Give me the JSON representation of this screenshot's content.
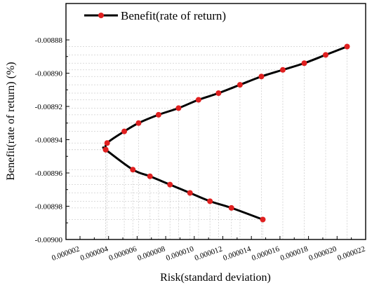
{
  "chart_data": {
    "type": "line",
    "xlabel": "Risk(standard deviation)",
    "ylabel": "Benefit(rate of return) (%)",
    "xlim": [
      2e-06,
      2.2e-05
    ],
    "ylim": [
      -0.009,
      -0.00887
    ],
    "x_ticks": [
      "0.000002",
      "0.000004",
      "0.000006",
      "0.000008",
      "0.000010",
      "0.000012",
      "0.000014",
      "0.000016",
      "0.000018",
      "0.000020",
      "0.000022"
    ],
    "y_ticks": [
      "-0.00888",
      "-0.00890",
      "-0.00892",
      "-0.00894",
      "-0.00896",
      "-0.00898",
      "-0.00900"
    ],
    "legend_position": "top-left",
    "grid": "dashed guide lines from each point to the axes",
    "line_color": "#000000",
    "marker_color": "#e02020",
    "series": [
      {
        "name": "Benefit(rate of return)",
        "x": [
          3.8e-06,
          3.9e-06,
          5.1e-06,
          6.1e-06,
          7.5e-06,
          8.9e-06,
          1.03e-05,
          1.17e-05,
          1.32e-05,
          1.47e-05,
          1.62e-05,
          1.77e-05,
          1.92e-05,
          2.07e-05,
          3.8e-06,
          5.7e-06,
          6.9e-06,
          8.3e-06,
          9.7e-06,
          1.11e-05,
          1.26e-05,
          1.48e-05
        ],
        "y": [
          -0.008946,
          -0.008942,
          -0.008935,
          -0.00893,
          -0.008925,
          -0.008921,
          -0.008916,
          -0.008912,
          -0.008907,
          -0.008902,
          -0.008898,
          -0.008894,
          -0.008889,
          -0.008884,
          -0.008946,
          -0.008958,
          -0.008962,
          -0.008967,
          -0.008972,
          -0.008977,
          -0.008981,
          -0.008988
        ]
      }
    ]
  }
}
